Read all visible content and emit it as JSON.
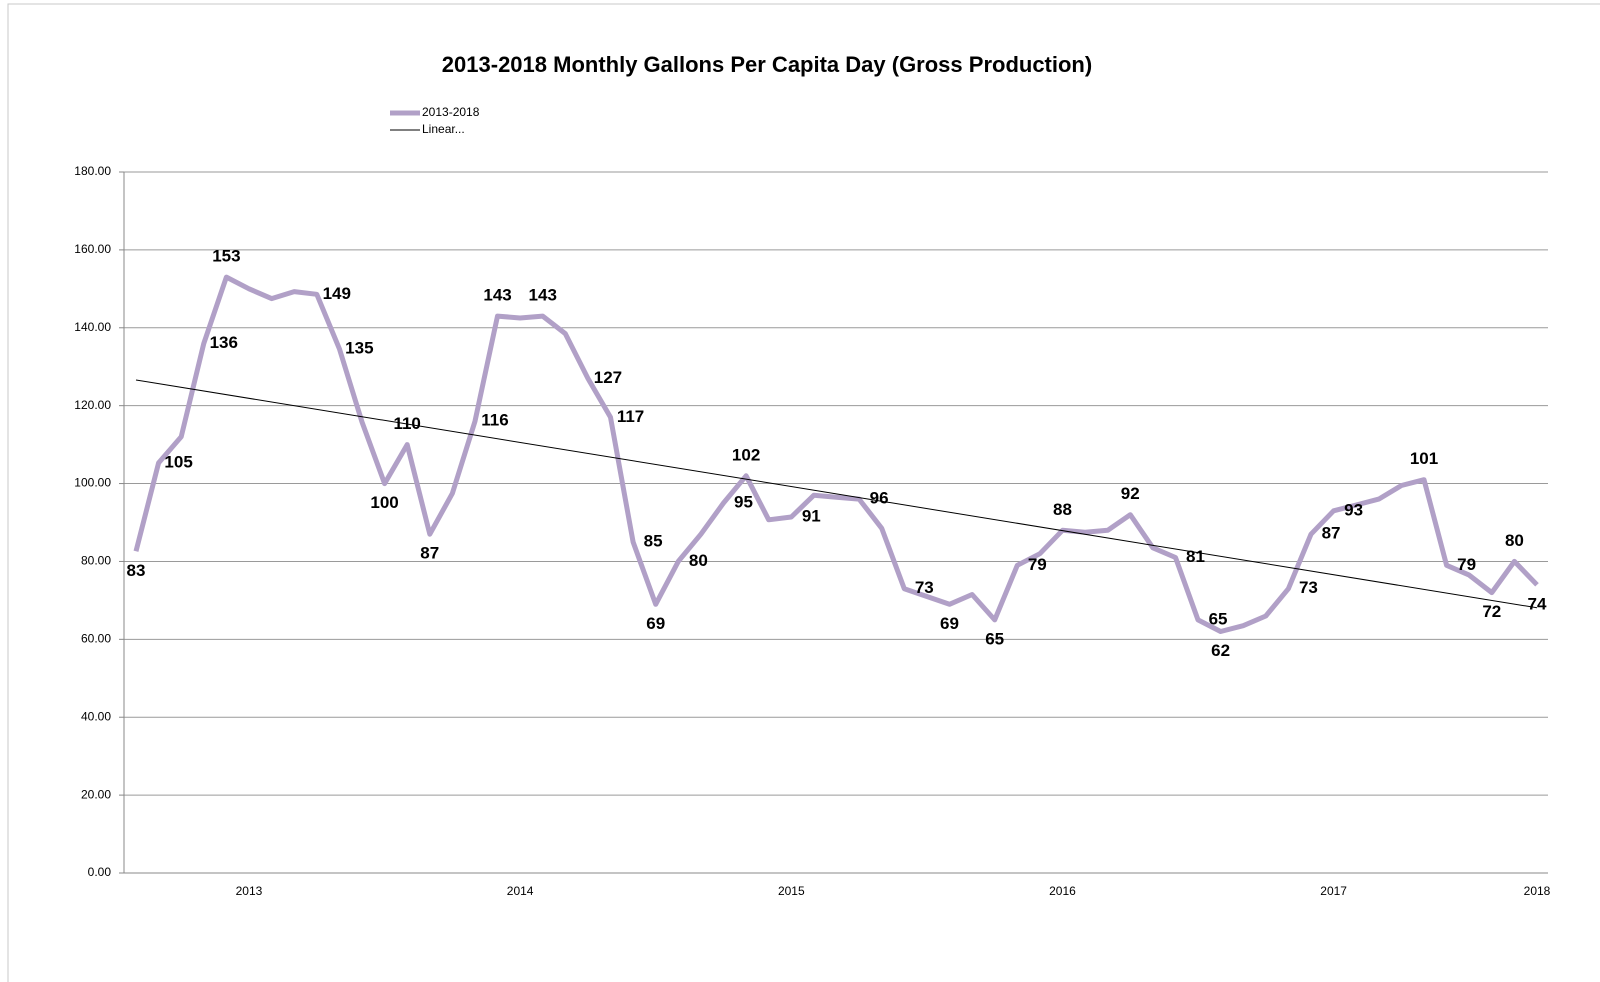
{
  "chart_data": {
    "type": "line",
    "title": "2013-2018 Monthly Gallons Per Capita Day (Gross Production)",
    "categories": [
      null,
      null,
      null,
      null,
      null,
      "2013",
      null,
      null,
      null,
      null,
      null,
      null,
      null,
      null,
      null,
      null,
      null,
      "2014",
      null,
      null,
      null,
      null,
      null,
      null,
      null,
      null,
      null,
      null,
      null,
      "2015",
      null,
      null,
      null,
      null,
      null,
      null,
      null,
      null,
      null,
      null,
      null,
      "2016",
      null,
      null,
      null,
      null,
      null,
      null,
      null,
      null,
      null,
      null,
      null,
      "2017",
      null,
      null,
      null,
      null,
      null,
      null,
      null,
      null,
      "2018"
    ],
    "series": [
      {
        "name": "2013-2018",
        "color": "#b1a0c7",
        "values": [
          82.6,
          105.3,
          112,
          136,
          153,
          150,
          147.5,
          149.3,
          148.6,
          134.6,
          115.8,
          100,
          110,
          87,
          97.5,
          116,
          143,
          142.5,
          143,
          138.5,
          127,
          117,
          85,
          69,
          80,
          87,
          95,
          102,
          90.7,
          91.4,
          97,
          96.5,
          96,
          88.5,
          73,
          71,
          69,
          71.5,
          65,
          79,
          82,
          88,
          87.5,
          88,
          92,
          83.5,
          81,
          65,
          62,
          63.5,
          66,
          73,
          87,
          93,
          94.5,
          96,
          99.5,
          101,
          79,
          76.5,
          72,
          80,
          74
        ],
        "value_labels": [
          "83",
          "105",
          null,
          "136",
          "153",
          null,
          null,
          null,
          "149",
          "135",
          null,
          "100",
          "110",
          "87",
          null,
          "116",
          "143",
          null,
          "143",
          null,
          "127",
          "117",
          "85",
          "69",
          "80",
          null,
          "95",
          "102",
          null,
          "91",
          null,
          null,
          "96",
          null,
          "73",
          null,
          "69",
          null,
          "65",
          "79",
          null,
          "88",
          null,
          null,
          "92",
          null,
          "81",
          "65",
          "62",
          null,
          null,
          "73",
          "87",
          "93",
          null,
          null,
          null,
          "101",
          "79",
          null,
          "72",
          "80",
          "74"
        ]
      }
    ],
    "trendline": {
      "name": "Linear...",
      "color": "#000000",
      "start": 126.6,
      "end": 68.1
    },
    "ylim": [
      0,
      180
    ],
    "yticks": [
      {
        "value": 0,
        "label": "0.00"
      },
      {
        "value": 20,
        "label": "20.00"
      },
      {
        "value": 40,
        "label": "40.00"
      },
      {
        "value": 60,
        "label": "60.00"
      },
      {
        "value": 80,
        "label": "80.00"
      },
      {
        "value": 100,
        "label": "100.00"
      },
      {
        "value": 120,
        "label": "120.00"
      },
      {
        "value": 140,
        "label": "140.00"
      },
      {
        "value": 160,
        "label": "160.00"
      },
      {
        "value": 180,
        "label": "180.00"
      }
    ],
    "grid": true
  }
}
